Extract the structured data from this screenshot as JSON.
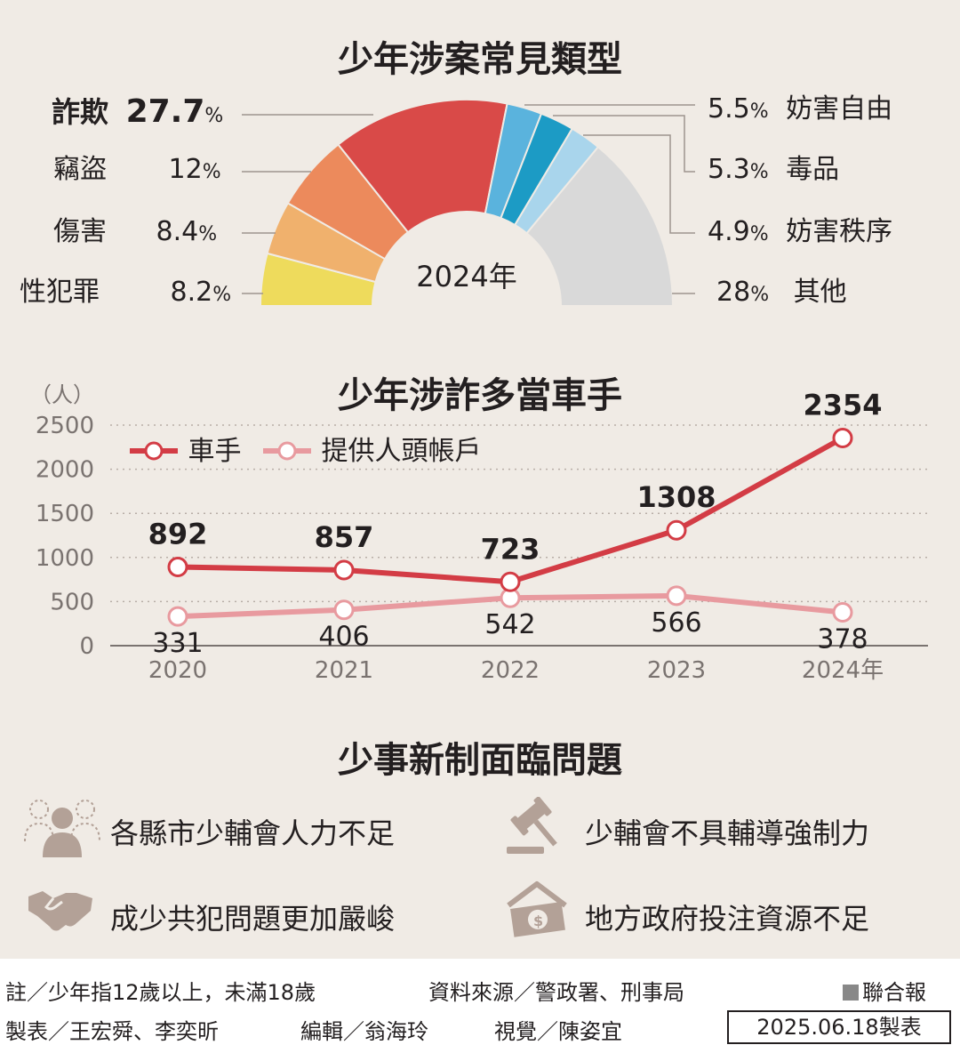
{
  "colors": {
    "panel": "#f0ebe5",
    "fraud": "#d94a48",
    "theft": "#ec8a5c",
    "injury": "#f0b16d",
    "sexcrime": "#eedb5c",
    "freedom": "#5ab3dd",
    "drugs": "#1c9bc5",
    "order": "#a9d5ec",
    "other": "#d9d9d9",
    "runner": "#d33c45",
    "account": "#e89a9f",
    "icon": "#b3a197"
  },
  "section1": {
    "title": "少年涉案常見類型",
    "center_label": "2024年"
  },
  "section2": {
    "title": "少年涉詐多當車手",
    "unit": "（人）"
  },
  "section3": {
    "title": "少事新制面臨問題",
    "problems": [
      {
        "text": "各縣市少輔會人力不足",
        "icon": "people-icon"
      },
      {
        "text": "少輔會不具輔導強制力",
        "icon": "gavel-icon"
      },
      {
        "text": "成少共犯問題更加嚴峻",
        "icon": "handshake-icon"
      },
      {
        "text": "地方政府投注資源不足",
        "icon": "money-house-icon"
      }
    ]
  },
  "chart_data": [
    {
      "type": "pie",
      "title": "少年涉案常見類型",
      "center_label": "2024年",
      "slices": [
        {
          "name": "性犯罪",
          "value": 8.2
        },
        {
          "name": "傷害",
          "value": 8.4
        },
        {
          "name": "竊盜",
          "value": 12
        },
        {
          "name": "詐欺",
          "value": 27.7
        },
        {
          "name": "妨害自由",
          "value": 5.5
        },
        {
          "name": "毒品",
          "value": 5.3
        },
        {
          "name": "妨害秩序",
          "value": 4.9
        },
        {
          "name": "其他",
          "value": 28
        }
      ],
      "display": {
        "詐欺": "27.7",
        "竊盜": "12",
        "傷害": "8.4",
        "性犯罪": "8.2",
        "妨害自由": "5.5",
        "毒品": "5.3",
        "妨害秩序": "4.9",
        "其他": "28"
      },
      "percent_symbol": "%"
    },
    {
      "type": "line",
      "title": "少年涉詐多當車手",
      "ylabel": "（人）",
      "categories": [
        "2020",
        "2021",
        "2022",
        "2023",
        "2024年"
      ],
      "ylim": [
        0,
        2500
      ],
      "yticks": [
        0,
        500,
        1000,
        1500,
        2000,
        2500
      ],
      "grid": true,
      "legend_position": "top-left",
      "series": [
        {
          "name": "車手",
          "values": [
            892,
            857,
            723,
            1308,
            2354
          ]
        },
        {
          "name": "提供人頭帳戶",
          "values": [
            331,
            406,
            542,
            566,
            378
          ]
        }
      ]
    }
  ],
  "footer": {
    "note": "註／少年指12歲以上，未滿18歲",
    "source": "資料來源／警政署、刑事局",
    "brand": "聯合報",
    "credits_made": "製表／王宏舜、李奕昕",
    "credits_editor": "編輯／翁海玲",
    "credits_visual": "視覺／陳姿宜",
    "date": "2025.06.18製表"
  }
}
